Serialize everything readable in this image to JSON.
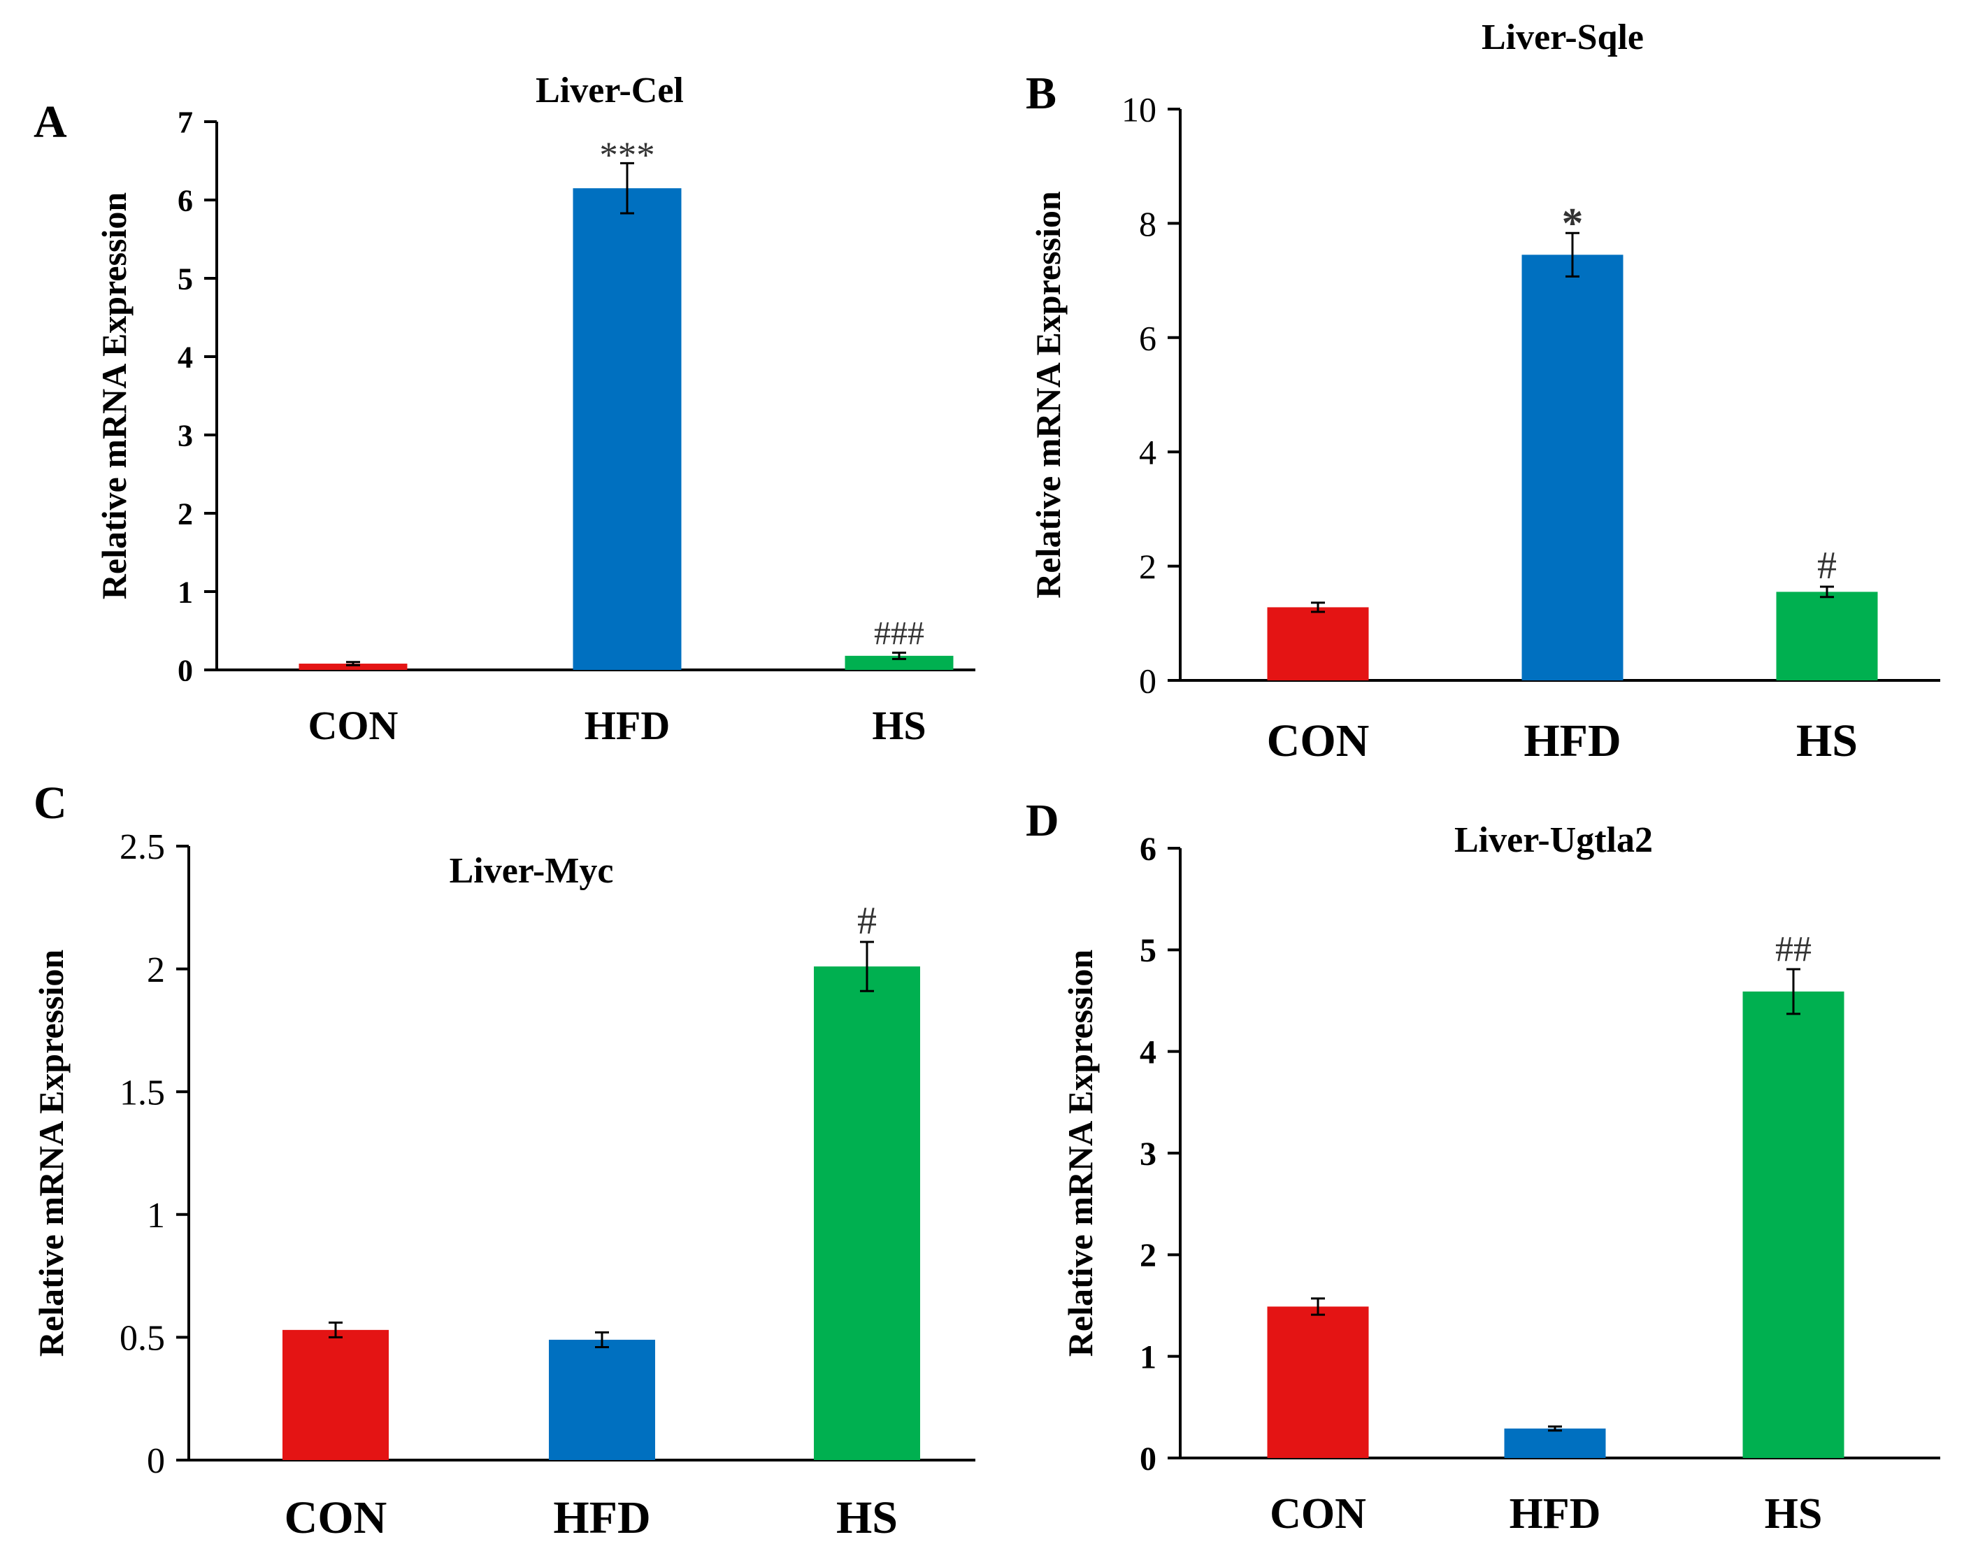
{
  "figure": {
    "colors": {
      "con": "#e41414",
      "hfd": "#0070c0",
      "hs": "#00b050",
      "axis": "#000000",
      "errorbar": "#000000"
    }
  },
  "chart_data": [
    {
      "type": "bar",
      "panel_label": "A",
      "title": "Liver-Cel",
      "ylabel": "Relative mRNA Expression",
      "xlabel": "",
      "categories": [
        "CON",
        "HFD",
        "HS"
      ],
      "values": [
        0.08,
        6.15,
        0.18
      ],
      "errors": [
        0.02,
        0.32,
        0.04
      ],
      "annotations": [
        "",
        "***",
        "###"
      ],
      "ylim": [
        0,
        7
      ],
      "yticks": [
        "0",
        "1",
        "2",
        "3",
        "4",
        "5",
        "6",
        "7"
      ],
      "grid": false,
      "bold_ticks": true
    },
    {
      "type": "bar",
      "panel_label": "B",
      "title": "Liver-Sqle",
      "ylabel": "Relative mRNA Expression",
      "xlabel": "",
      "categories": [
        "CON",
        "HFD",
        "HS"
      ],
      "values": [
        1.28,
        7.45,
        1.55
      ],
      "errors": [
        0.08,
        0.38,
        0.09
      ],
      "annotations": [
        "",
        "*",
        "#"
      ],
      "ylim": [
        0,
        10
      ],
      "yticks": [
        "0",
        "2",
        "4",
        "6",
        "8",
        "10"
      ],
      "grid": false,
      "bold_ticks": false
    },
    {
      "type": "bar",
      "panel_label": "C",
      "title": "Liver-Myc",
      "ylabel": "Relative mRNA Expression",
      "xlabel": "",
      "categories": [
        "CON",
        "HFD",
        "HS"
      ],
      "values": [
        0.53,
        0.49,
        2.01
      ],
      "errors": [
        0.03,
        0.03,
        0.1
      ],
      "annotations": [
        "",
        "",
        "#"
      ],
      "ylim": [
        0,
        2.5
      ],
      "yticks": [
        "0",
        "0.5",
        "1",
        "1.5",
        "2",
        "2.5"
      ],
      "grid": false,
      "bold_ticks": false
    },
    {
      "type": "bar",
      "panel_label": "D",
      "title": "Liver-Ugtla2",
      "ylabel": "Relative mRNA Expression",
      "xlabel": "",
      "categories": [
        "CON",
        "HFD",
        "HS"
      ],
      "values": [
        1.49,
        0.29,
        4.59
      ],
      "errors": [
        0.08,
        0.02,
        0.22
      ],
      "annotations": [
        "",
        "",
        "##"
      ],
      "ylim": [
        0,
        6
      ],
      "yticks": [
        "0",
        "1",
        "2",
        "3",
        "4",
        "5",
        "6"
      ],
      "grid": false,
      "bold_ticks": true
    }
  ]
}
